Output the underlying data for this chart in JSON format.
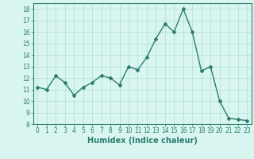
{
  "x": [
    0,
    1,
    2,
    3,
    4,
    5,
    6,
    7,
    8,
    9,
    10,
    11,
    12,
    13,
    14,
    15,
    16,
    17,
    18,
    19,
    20,
    21,
    22,
    23
  ],
  "y": [
    11.2,
    11.0,
    12.2,
    11.6,
    10.5,
    11.2,
    11.6,
    12.2,
    12.0,
    11.4,
    13.0,
    12.7,
    13.8,
    15.4,
    16.7,
    16.0,
    18.0,
    16.0,
    12.6,
    13.0,
    10.0,
    8.5,
    8.4,
    8.3
  ],
  "line_color": "#2d7d6e",
  "marker": "D",
  "marker_size": 2,
  "line_width": 1.0,
  "bg_color": "#d8f5f0",
  "grid_color": "#b0ddd8",
  "tick_color": "#2d7d6e",
  "xlabel": "Humidex (Indice chaleur)",
  "xlabel_fontsize": 7,
  "ylim": [
    8,
    18.5
  ],
  "yticks": [
    8,
    9,
    10,
    11,
    12,
    13,
    14,
    15,
    16,
    17,
    18
  ],
  "xticks": [
    0,
    1,
    2,
    3,
    4,
    5,
    6,
    7,
    8,
    9,
    10,
    11,
    12,
    13,
    14,
    15,
    16,
    17,
    18,
    19,
    20,
    21,
    22,
    23
  ],
  "tick_fontsize": 5.5,
  "spine_color": "#2d7d6e"
}
